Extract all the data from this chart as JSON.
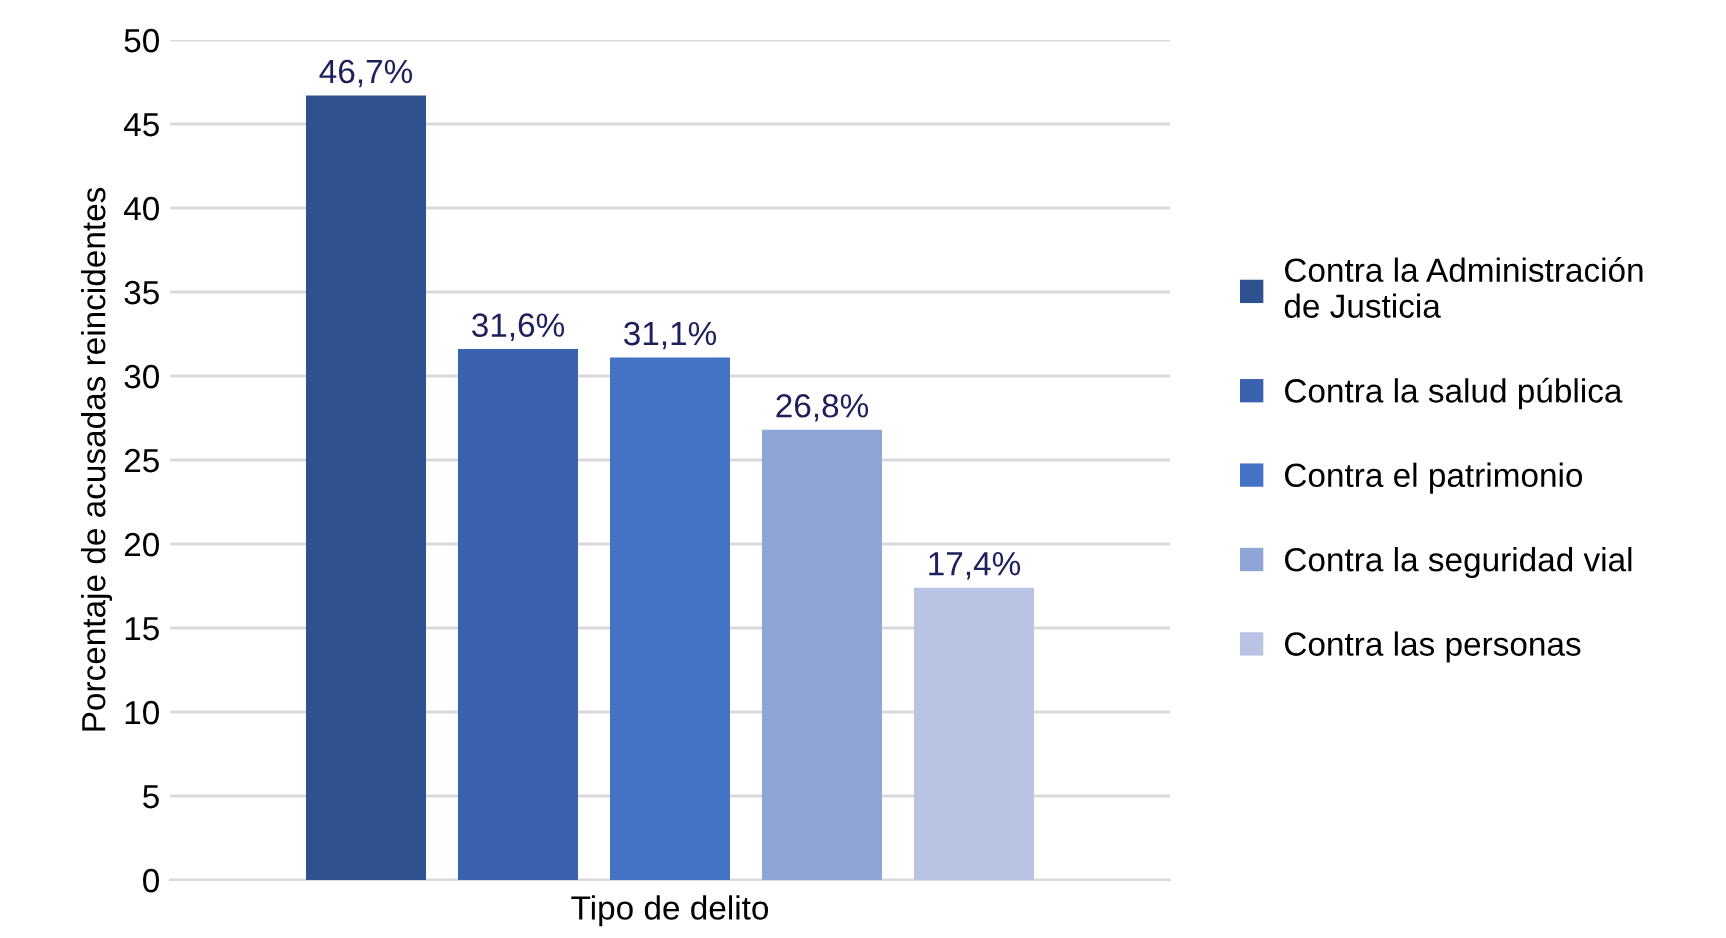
{
  "chart_data": {
    "type": "bar",
    "xlabel": "Tipo de delito",
    "ylabel": "Porcentaje de acusadas reincidentes",
    "categories": [
      null
    ],
    "series": [
      {
        "name": "Contra la Administración\nde Justicia",
        "color": "#2f528f",
        "values": [
          46.7
        ],
        "value_labels": [
          "46,7%"
        ]
      },
      {
        "name": "Contra la salud pública",
        "color": "#3a62ae",
        "values": [
          31.6
        ],
        "value_labels": [
          "31,6%"
        ]
      },
      {
        "name": "Contra el patrimonio",
        "color": "#4472c4",
        "values": [
          31.1
        ],
        "value_labels": [
          "31,1%"
        ]
      },
      {
        "name": "Contra la seguridad vial",
        "color": "#8fa5d6",
        "values": [
          26.8
        ],
        "value_labels": [
          "26,8%"
        ]
      },
      {
        "name": "Contra las personas",
        "color": "#b9c3e3",
        "values": [
          17.4
        ],
        "value_labels": [
          "17,4%"
        ]
      }
    ],
    "ylim": [
      0,
      50
    ],
    "yticks": [
      0,
      5,
      10,
      15,
      20,
      25,
      30,
      35,
      40,
      45,
      50
    ],
    "grid": "y",
    "legend": "right"
  }
}
